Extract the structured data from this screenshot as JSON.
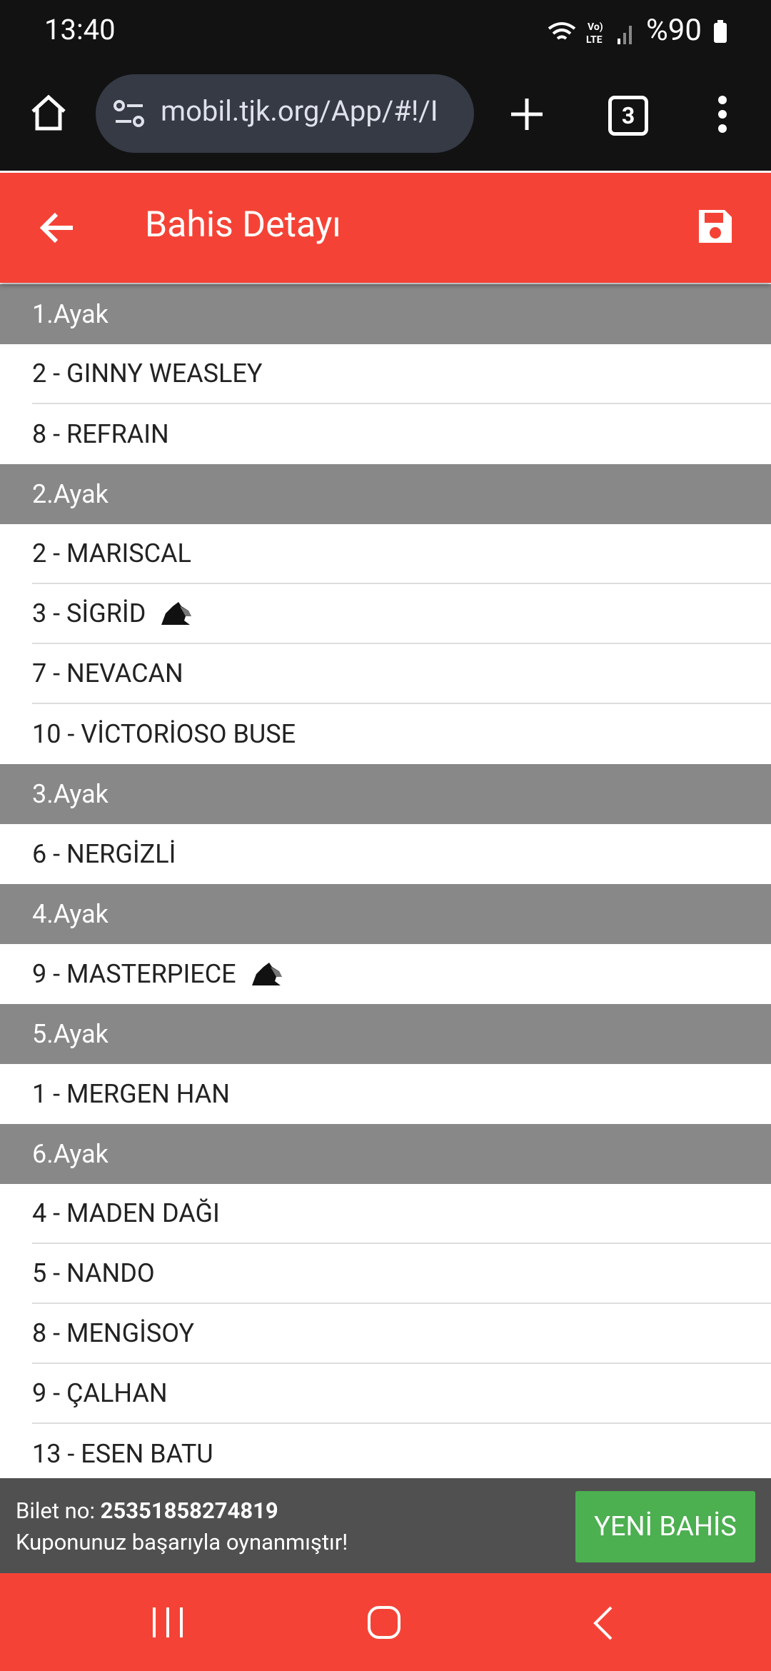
{
  "status_bar": {
    "time": "13:40",
    "battery": "%90"
  },
  "browser": {
    "url": "mobil.tjk.org/App/#!/I",
    "tab_count": "3"
  },
  "header": {
    "title": "Bahis Detayı"
  },
  "legs": [
    {
      "title": "1.Ayak",
      "runners": [
        {
          "text": "2 - GINNY WEASLEY"
        },
        {
          "text": "8 - REFRAIN"
        }
      ]
    },
    {
      "title": "2.Ayak",
      "runners": [
        {
          "text": "2 - MARISCAL"
        },
        {
          "text": "3 - SİGRİD",
          "icon": true
        },
        {
          "text": "7 - NEVACAN"
        },
        {
          "text": "10 - VİCTORİOSO BUSE"
        }
      ]
    },
    {
      "title": "3.Ayak",
      "runners": [
        {
          "text": "6 - NERGİZLİ"
        }
      ]
    },
    {
      "title": "4.Ayak",
      "runners": [
        {
          "text": "9 - MASTERPIECE",
          "icon": true
        }
      ]
    },
    {
      "title": "5.Ayak",
      "runners": [
        {
          "text": "1 - MERGEN HAN"
        }
      ]
    },
    {
      "title": "6.Ayak",
      "runners": [
        {
          "text": "4 - MADEN DAĞI"
        },
        {
          "text": "5 - NANDO"
        },
        {
          "text": "8 - MENGİSOY"
        },
        {
          "text": "9 - ÇALHAN"
        },
        {
          "text": "13 - ESEN BATU"
        }
      ]
    }
  ],
  "footer": {
    "ticket_label": "Bilet no:",
    "ticket_number": "25351858274819",
    "message": "Kuponunuz başarıyla oynanmıştır!",
    "button": "YENİ BAHİS"
  }
}
